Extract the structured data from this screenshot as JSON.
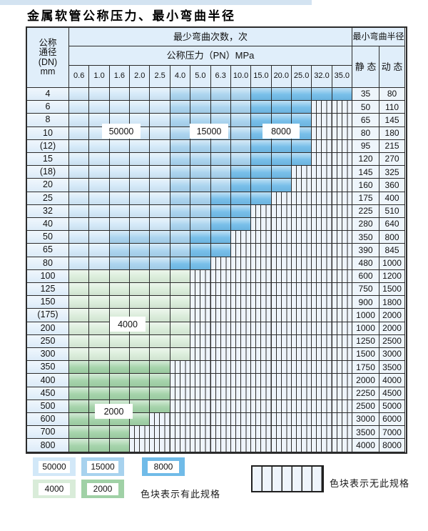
{
  "title": "金属软管公称压力、最小弯曲半径",
  "table": {
    "corner_lines": [
      "公称",
      "通径",
      "(DN)",
      "mm"
    ],
    "bend_times_header": "最少弯曲次数，次",
    "pressure_header": "公称压力（PN）MPa",
    "radius_header": "最小弯曲半径",
    "static_label": "静 态",
    "dynamic_label": "动 态",
    "pressure_columns": [
      "0.6",
      "1.0",
      "1.6",
      "2.0",
      "2.5",
      "4.0",
      "5.0",
      "6.3",
      "10.0",
      "15.0",
      "20.0",
      "25.0",
      "32.0",
      "35.0"
    ],
    "band_meaning": {
      "50k": "50000次",
      "15k": "15000次",
      "8k": "8000次",
      "4k": "4000次",
      "2k": "2000次",
      "x": "无此规格"
    },
    "overlay_labels": [
      "50000",
      "15000",
      "8000",
      "4000",
      "2000"
    ],
    "rows": [
      {
        "dn": "4",
        "static": "35",
        "dynamic": "80",
        "cells": [
          "50k",
          "50k",
          "50k",
          "50k",
          "50k",
          "15k",
          "15k",
          "15k",
          "15k",
          "8k",
          "8k",
          "8k",
          "8k",
          "8k"
        ]
      },
      {
        "dn": "6",
        "static": "50",
        "dynamic": "110",
        "cells": [
          "50k",
          "50k",
          "50k",
          "50k",
          "50k",
          "15k",
          "15k",
          "15k",
          "15k",
          "8k",
          "8k",
          "8k",
          "x",
          "x"
        ]
      },
      {
        "dn": "8",
        "static": "65",
        "dynamic": "145",
        "cells": [
          "50k",
          "50k",
          "50k",
          "50k",
          "50k",
          "15k",
          "15k",
          "15k",
          "15k",
          "8k",
          "8k",
          "8k",
          "x",
          "x"
        ]
      },
      {
        "dn": "10",
        "static": "80",
        "dynamic": "180",
        "cells": [
          "50k",
          "50k",
          "50k",
          "50k",
          "50k",
          "15k",
          "15k",
          "15k",
          "15k",
          "8k",
          "8k",
          "8k",
          "x",
          "x"
        ]
      },
      {
        "dn": "(12)",
        "static": "95",
        "dynamic": "215",
        "cells": [
          "50k",
          "50k",
          "50k",
          "50k",
          "50k",
          "15k",
          "15k",
          "15k",
          "15k",
          "8k",
          "8k",
          "8k",
          "x",
          "x"
        ]
      },
      {
        "dn": "15",
        "static": "120",
        "dynamic": "270",
        "cells": [
          "50k",
          "50k",
          "50k",
          "50k",
          "50k",
          "15k",
          "15k",
          "15k",
          "15k",
          "8k",
          "8k",
          "8k",
          "x",
          "x"
        ]
      },
      {
        "dn": "(18)",
        "static": "145",
        "dynamic": "325",
        "cells": [
          "50k",
          "50k",
          "50k",
          "50k",
          "50k",
          "15k",
          "15k",
          "15k",
          "8k",
          "8k",
          "8k",
          "x",
          "x",
          "x"
        ]
      },
      {
        "dn": "20",
        "static": "160",
        "dynamic": "360",
        "cells": [
          "50k",
          "50k",
          "50k",
          "50k",
          "50k",
          "15k",
          "15k",
          "15k",
          "8k",
          "8k",
          "8k",
          "x",
          "x",
          "x"
        ]
      },
      {
        "dn": "25",
        "static": "175",
        "dynamic": "400",
        "cells": [
          "50k",
          "50k",
          "50k",
          "50k",
          "50k",
          "15k",
          "15k",
          "8k",
          "8k",
          "8k",
          "x",
          "x",
          "x",
          "x"
        ]
      },
      {
        "dn": "32",
        "static": "225",
        "dynamic": "510",
        "cells": [
          "50k",
          "50k",
          "50k",
          "50k",
          "50k",
          "15k",
          "15k",
          "8k",
          "8k",
          "x",
          "x",
          "x",
          "x",
          "x"
        ]
      },
      {
        "dn": "40",
        "static": "280",
        "dynamic": "640",
        "cells": [
          "50k",
          "50k",
          "50k",
          "50k",
          "50k",
          "15k",
          "15k",
          "8k",
          "8k",
          "x",
          "x",
          "x",
          "x",
          "x"
        ]
      },
      {
        "dn": "50",
        "static": "350",
        "dynamic": "800",
        "cells": [
          "50k",
          "50k",
          "15k",
          "15k",
          "15k",
          "15k",
          "8k",
          "8k",
          "x",
          "x",
          "x",
          "x",
          "x",
          "x"
        ]
      },
      {
        "dn": "65",
        "static": "390",
        "dynamic": "845",
        "cells": [
          "50k",
          "50k",
          "15k",
          "15k",
          "15k",
          "15k",
          "8k",
          "8k",
          "x",
          "x",
          "x",
          "x",
          "x",
          "x"
        ]
      },
      {
        "dn": "80",
        "static": "480",
        "dynamic": "1000",
        "cells": [
          "50k",
          "50k",
          "15k",
          "15k",
          "15k",
          "8k",
          "8k",
          "x",
          "x",
          "x",
          "x",
          "x",
          "x",
          "x"
        ]
      },
      {
        "dn": "100",
        "static": "600",
        "dynamic": "1200",
        "cells": [
          "4k",
          "4k",
          "4k",
          "4k",
          "4k",
          "4k",
          "x",
          "x",
          "x",
          "x",
          "x",
          "x",
          "x",
          "x"
        ]
      },
      {
        "dn": "125",
        "static": "750",
        "dynamic": "1500",
        "cells": [
          "4k",
          "4k",
          "4k",
          "4k",
          "4k",
          "4k",
          "x",
          "x",
          "x",
          "x",
          "x",
          "x",
          "x",
          "x"
        ]
      },
      {
        "dn": "150",
        "static": "900",
        "dynamic": "1800",
        "cells": [
          "4k",
          "4k",
          "4k",
          "4k",
          "4k",
          "4k",
          "x",
          "x",
          "x",
          "x",
          "x",
          "x",
          "x",
          "x"
        ]
      },
      {
        "dn": "(175)",
        "static": "1000",
        "dynamic": "2000",
        "cells": [
          "4k",
          "4k",
          "4k",
          "4k",
          "4k",
          "4k",
          "x",
          "x",
          "x",
          "x",
          "x",
          "x",
          "x",
          "x"
        ]
      },
      {
        "dn": "200",
        "static": "1000",
        "dynamic": "2000",
        "cells": [
          "4k",
          "4k",
          "4k",
          "4k",
          "4k",
          "4k",
          "x",
          "x",
          "x",
          "x",
          "x",
          "x",
          "x",
          "x"
        ]
      },
      {
        "dn": "250",
        "static": "1250",
        "dynamic": "2500",
        "cells": [
          "4k",
          "4k",
          "4k",
          "4k",
          "4k",
          "4k",
          "x",
          "x",
          "x",
          "x",
          "x",
          "x",
          "x",
          "x"
        ]
      },
      {
        "dn": "300",
        "static": "1500",
        "dynamic": "3000",
        "cells": [
          "4k",
          "4k",
          "4k",
          "4k",
          "4k",
          "4k",
          "x",
          "x",
          "x",
          "x",
          "x",
          "x",
          "x",
          "x"
        ]
      },
      {
        "dn": "350",
        "static": "1750",
        "dynamic": "3500",
        "cells": [
          "2k",
          "2k",
          "2k",
          "2k",
          "2k",
          "x",
          "x",
          "x",
          "x",
          "x",
          "x",
          "x",
          "x",
          "x"
        ]
      },
      {
        "dn": "400",
        "static": "2000",
        "dynamic": "4000",
        "cells": [
          "2k",
          "2k",
          "2k",
          "2k",
          "2k",
          "x",
          "x",
          "x",
          "x",
          "x",
          "x",
          "x",
          "x",
          "x"
        ]
      },
      {
        "dn": "450",
        "static": "2250",
        "dynamic": "4500",
        "cells": [
          "2k",
          "2k",
          "2k",
          "2k",
          "2k",
          "x",
          "x",
          "x",
          "x",
          "x",
          "x",
          "x",
          "x",
          "x"
        ]
      },
      {
        "dn": "500",
        "static": "2500",
        "dynamic": "5000",
        "cells": [
          "2k",
          "2k",
          "2k",
          "2k",
          "2k",
          "x",
          "x",
          "x",
          "x",
          "x",
          "x",
          "x",
          "x",
          "x"
        ]
      },
      {
        "dn": "600",
        "static": "3000",
        "dynamic": "6000",
        "cells": [
          "2k",
          "2k",
          "2k",
          "2k",
          "x",
          "x",
          "x",
          "x",
          "x",
          "x",
          "x",
          "x",
          "x",
          "x"
        ]
      },
      {
        "dn": "700",
        "static": "3500",
        "dynamic": "7000",
        "cells": [
          "2k",
          "2k",
          "2k",
          "x",
          "x",
          "x",
          "x",
          "x",
          "x",
          "x",
          "x",
          "x",
          "x",
          "x"
        ]
      },
      {
        "dn": "800",
        "static": "4000",
        "dynamic": "8000",
        "cells": [
          "2k",
          "2k",
          "2k",
          "x",
          "x",
          "x",
          "x",
          "x",
          "x",
          "x",
          "x",
          "x",
          "x",
          "x"
        ]
      }
    ]
  },
  "legend": {
    "swatches": [
      {
        "label": "50000",
        "code": "50k"
      },
      {
        "label": "15000",
        "code": "15k"
      },
      {
        "label": "8000",
        "code": "8k"
      },
      {
        "label": "4000",
        "code": "4k"
      },
      {
        "label": "2000",
        "code": "2k"
      }
    ],
    "has_spec_note": "色块表示有此规格",
    "no_spec_note": "色块表示无此规格"
  },
  "colors": {
    "50k": "#d2e8f8",
    "15k": "#a7d2ee",
    "8k": "#70bbe8",
    "4k": "#d9ecd9",
    "2k": "#a0d1a6",
    "hatch_bg": "#eef4fb",
    "header_bg": "#e0eefa",
    "border": "#2b2b2b"
  }
}
